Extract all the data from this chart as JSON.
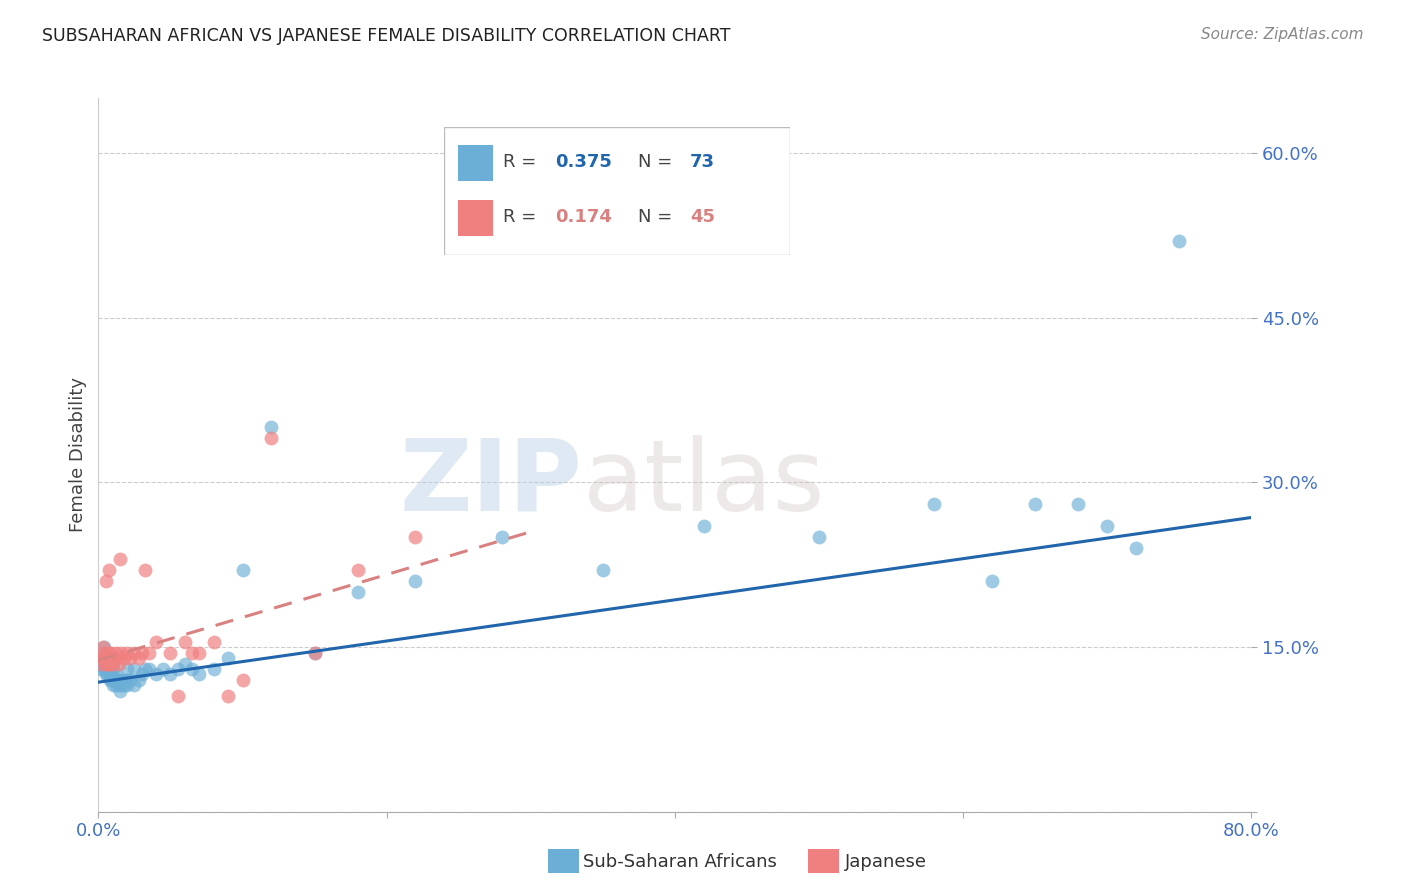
{
  "title": "SUBSAHARAN AFRICAN VS JAPANESE FEMALE DISABILITY CORRELATION CHART",
  "source": "Source: ZipAtlas.com",
  "ylabel": "Female Disability",
  "yticks": [
    0.0,
    0.15,
    0.3,
    0.45,
    0.6
  ],
  "ytick_labels": [
    "",
    "15.0%",
    "30.0%",
    "45.0%",
    "60.0%"
  ],
  "xlim": [
    0.0,
    0.8
  ],
  "ylim": [
    0.04,
    0.65
  ],
  "blue_R": "0.375",
  "blue_N": "73",
  "pink_R": "0.174",
  "pink_N": "45",
  "blue_color": "#6baed6",
  "pink_color": "#f08080",
  "blue_line_color": "#2166ac",
  "pink_line_color": "#d98080",
  "legend_label_blue": "Sub-Saharan Africans",
  "legend_label_pink": "Japanese",
  "watermark_zip": "ZIP",
  "watermark_atlas": "atlas",
  "axis_color": "#4472c4",
  "blue_scatter_x": [
    0.002,
    0.003,
    0.003,
    0.004,
    0.004,
    0.004,
    0.005,
    0.005,
    0.005,
    0.005,
    0.005,
    0.006,
    0.006,
    0.006,
    0.006,
    0.007,
    0.007,
    0.007,
    0.008,
    0.008,
    0.008,
    0.008,
    0.009,
    0.009,
    0.009,
    0.01,
    0.01,
    0.01,
    0.01,
    0.012,
    0.012,
    0.013,
    0.014,
    0.015,
    0.015,
    0.016,
    0.017,
    0.018,
    0.019,
    0.02,
    0.02,
    0.022,
    0.025,
    0.025,
    0.028,
    0.03,
    0.032,
    0.035,
    0.04,
    0.045,
    0.05,
    0.055,
    0.06,
    0.065,
    0.07,
    0.08,
    0.09,
    0.1,
    0.12,
    0.15,
    0.18,
    0.22,
    0.28,
    0.35,
    0.42,
    0.5,
    0.58,
    0.62,
    0.65,
    0.68,
    0.7,
    0.72,
    0.75
  ],
  "blue_scatter_y": [
    0.13,
    0.135,
    0.14,
    0.13,
    0.14,
    0.15,
    0.125,
    0.13,
    0.135,
    0.14,
    0.145,
    0.125,
    0.13,
    0.135,
    0.14,
    0.125,
    0.13,
    0.14,
    0.12,
    0.125,
    0.13,
    0.14,
    0.12,
    0.125,
    0.135,
    0.115,
    0.12,
    0.13,
    0.135,
    0.115,
    0.125,
    0.12,
    0.115,
    0.11,
    0.12,
    0.115,
    0.12,
    0.115,
    0.12,
    0.115,
    0.13,
    0.12,
    0.115,
    0.13,
    0.12,
    0.125,
    0.13,
    0.13,
    0.125,
    0.13,
    0.125,
    0.13,
    0.135,
    0.13,
    0.125,
    0.13,
    0.14,
    0.22,
    0.35,
    0.145,
    0.2,
    0.21,
    0.25,
    0.22,
    0.26,
    0.25,
    0.28,
    0.21,
    0.28,
    0.28,
    0.26,
    0.24,
    0.52
  ],
  "pink_scatter_x": [
    0.002,
    0.003,
    0.003,
    0.004,
    0.004,
    0.005,
    0.005,
    0.005,
    0.006,
    0.006,
    0.006,
    0.007,
    0.007,
    0.007,
    0.008,
    0.009,
    0.009,
    0.01,
    0.01,
    0.012,
    0.013,
    0.014,
    0.015,
    0.016,
    0.018,
    0.02,
    0.022,
    0.025,
    0.028,
    0.03,
    0.032,
    0.035,
    0.04,
    0.05,
    0.055,
    0.06,
    0.065,
    0.07,
    0.08,
    0.09,
    0.1,
    0.12,
    0.15,
    0.18,
    0.22
  ],
  "pink_scatter_y": [
    0.135,
    0.14,
    0.15,
    0.14,
    0.145,
    0.135,
    0.14,
    0.21,
    0.135,
    0.14,
    0.145,
    0.135,
    0.22,
    0.145,
    0.135,
    0.14,
    0.145,
    0.135,
    0.14,
    0.145,
    0.14,
    0.135,
    0.23,
    0.145,
    0.14,
    0.145,
    0.14,
    0.145,
    0.14,
    0.145,
    0.22,
    0.145,
    0.155,
    0.145,
    0.105,
    0.155,
    0.145,
    0.145,
    0.155,
    0.105,
    0.12,
    0.34,
    0.145,
    0.22,
    0.25
  ],
  "blue_line_x": [
    0.0,
    0.8
  ],
  "blue_line_y": [
    0.118,
    0.268
  ],
  "pink_line_x": [
    0.0,
    0.3
  ],
  "pink_line_y": [
    0.138,
    0.255
  ]
}
